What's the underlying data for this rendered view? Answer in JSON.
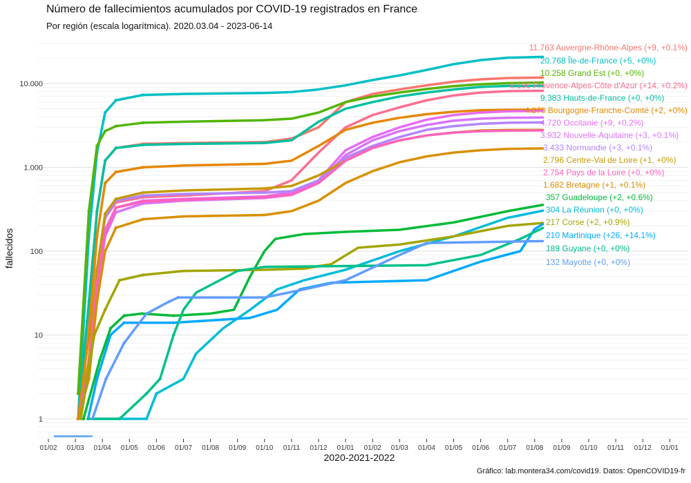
{
  "chart_data": {
    "type": "line",
    "title": "Número de fallecimientos acumulados por COVID-19 registrados en France",
    "subtitle": "Por región (escala logarítmica). 2020.03.04 - 2023-06-14",
    "xlabel": "2020-2021-2022",
    "ylabel": "fallecidos",
    "caption": "Gráfico: lab.montera34.com/covid19. Datos: OpenCOVID19-fr",
    "y_scale": "log",
    "ylim": [
      0.6,
      25000
    ],
    "y_ticks": [
      {
        "v": 1,
        "label": "1"
      },
      {
        "v": 10,
        "label": "10"
      },
      {
        "v": 100,
        "label": "100"
      },
      {
        "v": 1000,
        "label": "1.000"
      },
      {
        "v": 10000,
        "label": "10.000"
      }
    ],
    "x_ticks": [
      "01/02",
      "01/03",
      "01/04",
      "01/05",
      "01/06",
      "01/07",
      "01/08",
      "01/09",
      "01/10",
      "01/11",
      "01/12",
      "01/01",
      "01/02",
      "01/03",
      "01/04",
      "01/05",
      "01/06",
      "01/07",
      "01/08",
      "01/09",
      "01/10",
      "01/11",
      "01/12",
      "01/01"
    ],
    "x_first_tick_date": "2020-02-01",
    "grid": true,
    "legend": "direct labels at line ends (right)",
    "shared_dates": [
      "2020-03-04",
      "2020-03-16",
      "2020-03-25",
      "2020-04-04",
      "2020-04-16",
      "2020-05-16",
      "2020-07-01",
      "2020-10-01",
      "2020-11-01",
      "2020-12-01",
      "2021-01-01",
      "2021-02-01",
      "2021-03-01",
      "2021-04-01",
      "2021-05-01",
      "2021-06-01",
      "2021-07-01",
      "2021-08-10"
    ],
    "series": [
      {
        "name": "Auvergne-Rhône-Alpes",
        "label": "11.763 Auvergne-Rhône-Alpes (+9, +0.1%)",
        "color": "#F8766D",
        "values": [
          1,
          20,
          300,
          1200,
          1700,
          1900,
          1950,
          2000,
          2200,
          3000,
          6000,
          7500,
          8500,
          9500,
          10500,
          11200,
          11600,
          11763
        ]
      },
      {
        "name": "Île-de-France",
        "label": "20.768 Île-de-France (+5, +0%)",
        "color": "#00BFC4",
        "values": [
          1,
          150,
          1500,
          4500,
          6300,
          7300,
          7500,
          7700,
          7900,
          8500,
          9500,
          11000,
          12500,
          14500,
          17000,
          19000,
          20300,
          20768
        ]
      },
      {
        "name": "Grand Est",
        "label": "10.258 Grand Est (+0, +0%)",
        "color": "#53B400",
        "values": [
          2,
          300,
          1800,
          2700,
          3100,
          3400,
          3500,
          3650,
          3800,
          4500,
          6000,
          7000,
          7800,
          8600,
          9300,
          9800,
          10100,
          10258
        ]
      },
      {
        "name": "Provence-Alpes-Côte d'Azur",
        "label": "8.196 Provence-Alpes-Côte d'Azur (+14, +0.2%)",
        "color": "#FC6E91",
        "values": [
          1,
          5,
          60,
          250,
          380,
          440,
          460,
          520,
          700,
          1500,
          3000,
          4200,
          5200,
          6300,
          7200,
          7800,
          8100,
          8196
        ]
      },
      {
        "name": "Hauts-de-France",
        "label": "9.383 Hauts-de-France (+0, +0%)",
        "color": "#00BFA0",
        "values": [
          1,
          25,
          300,
          1200,
          1700,
          1850,
          1900,
          1950,
          2100,
          3500,
          5000,
          6000,
          7000,
          7800,
          8500,
          9100,
          9350,
          9383
        ]
      },
      {
        "name": "Bourgogne-Franche-Comté",
        "label": "4.870 Bourgogne-Franche-Comté (+2, +0%)",
        "color": "#E58700",
        "values": [
          1,
          10,
          150,
          650,
          880,
          1000,
          1050,
          1100,
          1200,
          1800,
          2800,
          3400,
          3900,
          4300,
          4600,
          4800,
          4850,
          4870
        ]
      },
      {
        "name": "Occitanie",
        "label": "4.720 Occitanie (+9, +0.2%)",
        "color": "#E76BF3",
        "values": [
          1,
          4,
          40,
          180,
          330,
          400,
          420,
          450,
          500,
          700,
          1600,
          2300,
          3000,
          3700,
          4200,
          4500,
          4650,
          4720
        ]
      },
      {
        "name": "Nouvelle-Aquitaine",
        "label": "3.932 Nouvelle-Aquitaine (+3, +0.1%)",
        "color": "#D874F8",
        "values": [
          1,
          3,
          30,
          150,
          290,
          370,
          400,
          430,
          470,
          650,
          1400,
          2100,
          2700,
          3200,
          3600,
          3800,
          3900,
          3932
        ]
      },
      {
        "name": "Normandie",
        "label": "3.433 Normandie (+3, +0.1%)",
        "color": "#B385FF",
        "values": [
          1,
          5,
          60,
          250,
          400,
          460,
          480,
          500,
          520,
          700,
          1300,
          1800,
          2300,
          2800,
          3100,
          3300,
          3400,
          3433
        ]
      },
      {
        "name": "Centre-Val de Loire",
        "label": "2.796 Centre-Val de Loire (+1, +0%)",
        "color": "#C49A00",
        "values": [
          1,
          5,
          60,
          280,
          420,
          500,
          530,
          560,
          600,
          800,
          1200,
          1700,
          2100,
          2400,
          2600,
          2750,
          2790,
          2796
        ]
      },
      {
        "name": "Pays de la Loire",
        "label": "2.754 Pays de la Loire (+0, +0%)",
        "color": "#FF62BC",
        "values": [
          1,
          4,
          40,
          170,
          330,
          390,
          410,
          440,
          470,
          650,
          1200,
          1700,
          2100,
          2400,
          2600,
          2700,
          2740,
          2754
        ]
      },
      {
        "name": "Bretagne",
        "label": "1.682 Bretagne (+1, +0.1%)",
        "color": "#D89000",
        "values": [
          1,
          3,
          25,
          100,
          190,
          240,
          260,
          270,
          300,
          400,
          650,
          900,
          1150,
          1350,
          1500,
          1600,
          1660,
          1682
        ]
      },
      {
        "name": "Guadeloupe",
        "label": "357 Guadeloupe (+2, +0.6%)",
        "color": "#00BA38",
        "points": [
          [
            "2020-03-10",
            1
          ],
          [
            "2020-03-28",
            5
          ],
          [
            "2020-04-10",
            12
          ],
          [
            "2020-04-25",
            17
          ],
          [
            "2020-05-15",
            18
          ],
          [
            "2020-06-20",
            17
          ],
          [
            "2020-08-01",
            18
          ],
          [
            "2020-08-27",
            20
          ],
          [
            "2020-09-15",
            50
          ],
          [
            "2020-10-01",
            100
          ],
          [
            "2020-10-13",
            140
          ],
          [
            "2020-11-15",
            160
          ],
          [
            "2021-01-01",
            170
          ],
          [
            "2021-03-01",
            180
          ],
          [
            "2021-05-01",
            220
          ],
          [
            "2021-07-01",
            300
          ],
          [
            "2021-08-10",
            357
          ]
        ]
      },
      {
        "name": "La Réunion",
        "label": "304 La Réunion (+0, +0%)",
        "color": "#00BCD8",
        "points": [
          [
            "2020-03-20",
            1
          ],
          [
            "2020-05-20",
            1
          ],
          [
            "2020-06-01",
            2
          ],
          [
            "2020-07-01",
            3
          ],
          [
            "2020-07-15",
            6
          ],
          [
            "2020-08-15",
            12
          ],
          [
            "2020-09-15",
            20
          ],
          [
            "2020-10-15",
            35
          ],
          [
            "2020-11-15",
            45
          ],
          [
            "2021-01-01",
            60
          ],
          [
            "2021-03-01",
            100
          ],
          [
            "2021-05-01",
            150
          ],
          [
            "2021-07-01",
            250
          ],
          [
            "2021-08-10",
            304
          ]
        ]
      },
      {
        "name": "Corse",
        "label": "217 Corse (+2, +0.9%)",
        "color": "#A3A500",
        "points": [
          [
            "2020-03-07",
            1
          ],
          [
            "2020-03-22",
            10
          ],
          [
            "2020-04-04",
            20
          ],
          [
            "2020-04-20",
            45
          ],
          [
            "2020-05-16",
            52
          ],
          [
            "2020-07-01",
            58
          ],
          [
            "2020-10-01",
            60
          ],
          [
            "2020-11-15",
            62
          ],
          [
            "2020-12-15",
            70
          ],
          [
            "2021-01-15",
            110
          ],
          [
            "2021-03-01",
            120
          ],
          [
            "2021-05-01",
            150
          ],
          [
            "2021-07-01",
            200
          ],
          [
            "2021-08-10",
            217
          ]
        ]
      },
      {
        "name": "Martinique",
        "label": "210 Martinique (+26, +14.1%)",
        "color": "#00A9FF",
        "points": [
          [
            "2020-03-15",
            1
          ],
          [
            "2020-03-25",
            3
          ],
          [
            "2020-04-10",
            10
          ],
          [
            "2020-04-25",
            14
          ],
          [
            "2020-06-20",
            14
          ],
          [
            "2020-09-15",
            16
          ],
          [
            "2020-10-15",
            20
          ],
          [
            "2020-11-10",
            35
          ],
          [
            "2020-12-15",
            42
          ],
          [
            "2021-04-01",
            45
          ],
          [
            "2021-06-01",
            75
          ],
          [
            "2021-07-15",
            100
          ],
          [
            "2021-08-01",
            184
          ],
          [
            "2021-08-10",
            210
          ]
        ]
      },
      {
        "name": "Guyane",
        "label": "189 Guyane (+0, +0%)",
        "color": "#00C08B",
        "points": [
          [
            "2020-03-15",
            1
          ],
          [
            "2020-04-20",
            1
          ],
          [
            "2020-05-20",
            2
          ],
          [
            "2020-06-05",
            3
          ],
          [
            "2020-06-20",
            10
          ],
          [
            "2020-07-01",
            20
          ],
          [
            "2020-07-15",
            32
          ],
          [
            "2020-09-01",
            58
          ],
          [
            "2020-10-01",
            65
          ],
          [
            "2021-04-01",
            68
          ],
          [
            "2021-06-01",
            90
          ],
          [
            "2021-07-15",
            140
          ],
          [
            "2021-08-10",
            189
          ]
        ]
      },
      {
        "name": "Mayotte",
        "label": "132 Mayotte (+0, +0%)",
        "color": "#619CFF",
        "points": [
          [
            "2020-03-20",
            1
          ],
          [
            "2020-04-05",
            3
          ],
          [
            "2020-04-25",
            8
          ],
          [
            "2020-05-20",
            18
          ],
          [
            "2020-06-15",
            25
          ],
          [
            "2020-06-25",
            28
          ],
          [
            "2020-10-01",
            28
          ],
          [
            "2020-11-15",
            35
          ],
          [
            "2021-01-01",
            45
          ],
          [
            "2021-03-01",
            90
          ],
          [
            "2021-04-01",
            125
          ],
          [
            "2021-08-10",
            132
          ]
        ]
      }
    ]
  }
}
